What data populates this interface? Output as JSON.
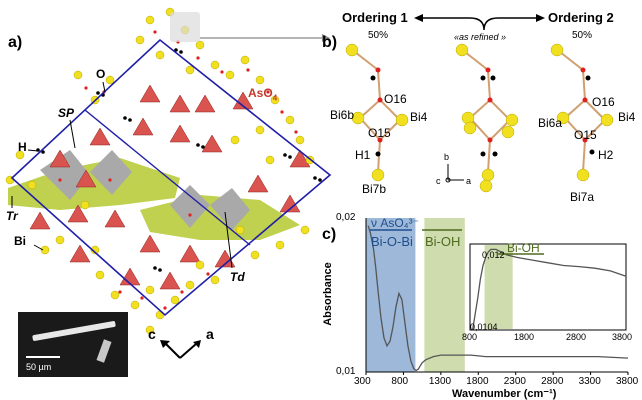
{
  "panels": {
    "a": "a)",
    "b": "b)",
    "c": "c)"
  },
  "panel_a": {
    "labels": {
      "O": "O",
      "AsO4": "AsO",
      "AsO4_sub": "4",
      "SP": "SP",
      "H": "H",
      "Tr": "Tr",
      "Bi": "Bi",
      "Td": "Td",
      "axis_c": "c",
      "axis_a": "a"
    },
    "scale_bar": "50 µm",
    "colors": {
      "frame": "#1f1fa8",
      "tetra": "#d9534f",
      "bi": "#f0e020",
      "sp": "#a9a9a9",
      "tr": "#b5c830"
    }
  },
  "panel_b": {
    "ordering1": {
      "title": "Ordering 1",
      "pct": "50%"
    },
    "as_refined": "«as refined »",
    "ordering2": {
      "title": "Ordering 2",
      "pct": "50%"
    },
    "left_labels": {
      "O16": "O16",
      "Bi6b": "Bi6b",
      "Bi4": "Bi4",
      "O15": "O15",
      "H1": "H1",
      "Bi7b": "Bi7b"
    },
    "right_labels": {
      "O16": "O16",
      "Bi6a": "Bi6a",
      "Bi4": "Bi4",
      "O15": "O15",
      "H2": "H2",
      "Bi7a": "Bi7a"
    },
    "axes": {
      "b": "b",
      "c": "c",
      "a": "a"
    }
  },
  "chart_data": {
    "type": "line",
    "xlabel": "Wavenumber (cm⁻¹)",
    "ylabel": "Absorbance",
    "xlim": [
      300,
      3800
    ],
    "ylim": [
      0.01,
      0.02
    ],
    "x_ticks": [
      "300",
      "800",
      "1300",
      "1800",
      "2300",
      "2800",
      "3300",
      "3800"
    ],
    "y_ticks": [
      "0,01",
      "0,02"
    ],
    "bands": [
      {
        "label": "ν AsO₄³⁻",
        "label2": "Bi-O-Bi",
        "from": 300,
        "to": 960,
        "color": "#9db8d8"
      },
      {
        "label": "Bi-OH",
        "from": 1080,
        "to": 1620,
        "color": "#cfdcae"
      }
    ],
    "series": [
      {
        "x": [
          330,
          360,
          400,
          430,
          460,
          500,
          540,
          580,
          620,
          660,
          700,
          740,
          780,
          820,
          860,
          900,
          940,
          970,
          1000,
          1050,
          1100,
          1200,
          1300,
          1500,
          1700,
          1900,
          2200,
          2500,
          2800,
          3100,
          3400,
          3800
        ],
        "y": [
          0.0195,
          0.019,
          0.018,
          0.0168,
          0.0153,
          0.0135,
          0.0122,
          0.0117,
          0.012,
          0.0129,
          0.0142,
          0.0151,
          0.0147,
          0.0132,
          0.0117,
          0.0107,
          0.0102,
          0.0101,
          0.0102,
          0.0106,
          0.0108,
          0.011,
          0.0111,
          0.0111,
          0.0111,
          0.011,
          0.011,
          0.011,
          0.011,
          0.011,
          0.011,
          0.0109
        ]
      }
    ],
    "inset": {
      "xlim": [
        800,
        3800
      ],
      "ylim": [
        0.0104,
        0.012
      ],
      "x_ticks": [
        "800",
        "1800",
        "2800",
        "3800"
      ],
      "y_ticks": [
        "0,0104",
        "0,012"
      ],
      "band": {
        "label": "Bi-OH",
        "from": 1080,
        "to": 1620,
        "color": "#cfdcae"
      },
      "series": [
        {
          "x": [
            850,
            900,
            950,
            1000,
            1050,
            1100,
            1150,
            1200,
            1300,
            1400,
            1500,
            1700,
            2000,
            2300,
            2600,
            2900,
            3200,
            3500,
            3800
          ],
          "y": [
            0.0104,
            0.0107,
            0.011,
            0.01135,
            0.0116,
            0.01175,
            0.01185,
            0.0119,
            0.0119,
            0.01185,
            0.0118,
            0.01175,
            0.0117,
            0.01165,
            0.0116,
            0.01158,
            0.01155,
            0.0115,
            0.0114
          ]
        }
      ]
    }
  }
}
